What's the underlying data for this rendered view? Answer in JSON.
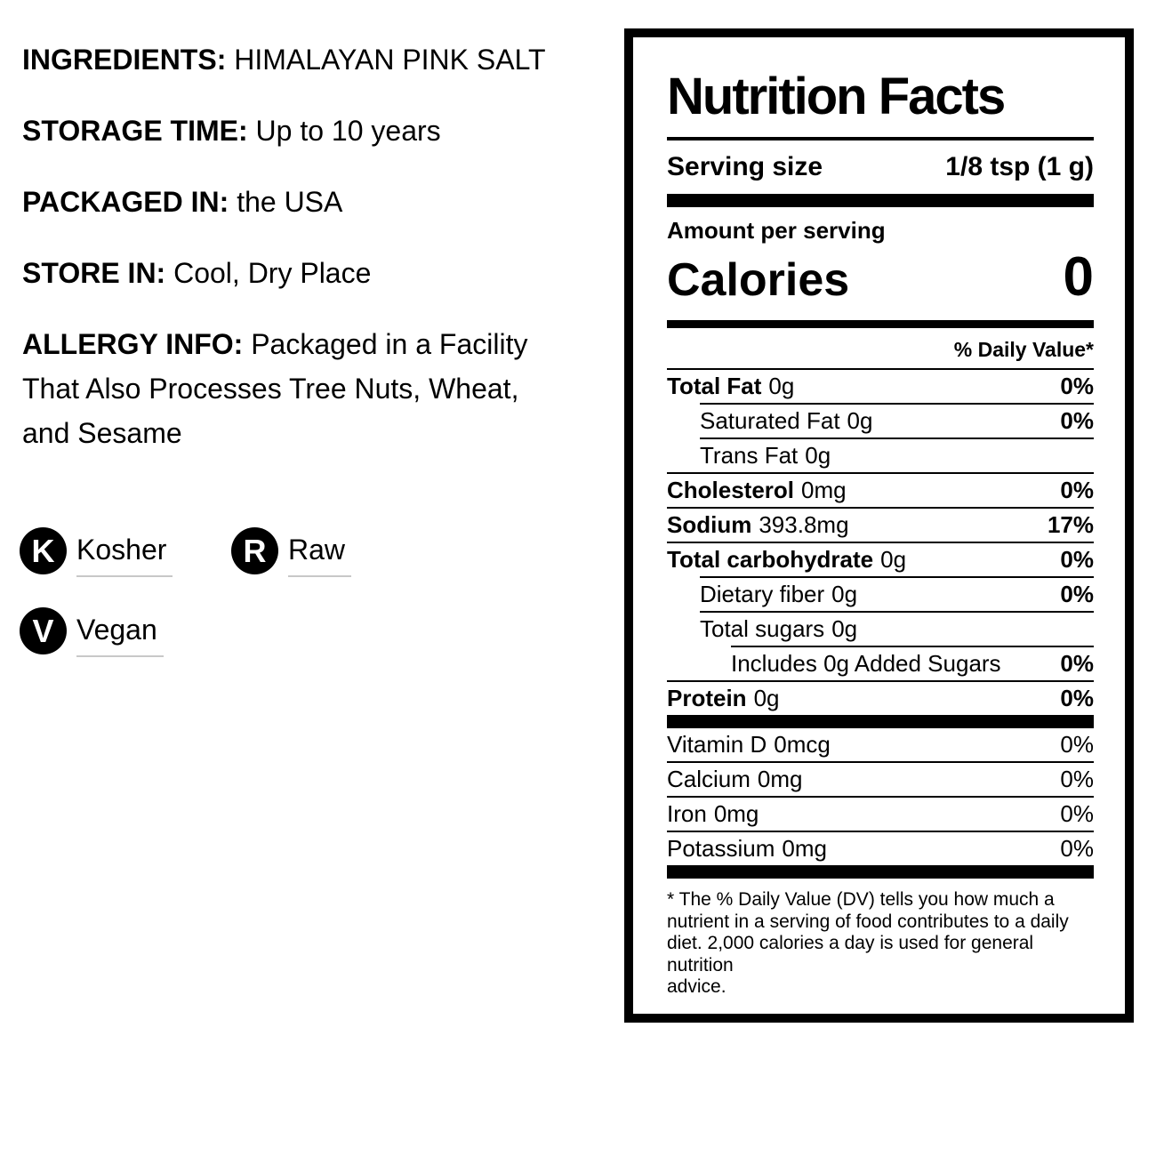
{
  "colors": {
    "text": "#000000",
    "badge_bg": "#000000",
    "badge_letter": "#ffffff",
    "underline": "#c8c8c8"
  },
  "left": {
    "items": [
      {
        "label": "INGREDIENTS:",
        "value": "HIMALAYAN PINK SALT"
      },
      {
        "label": "STORAGE TIME:",
        "value": "Up to 10 years"
      },
      {
        "label": "PACKAGED IN:",
        "value": "the USA"
      },
      {
        "label": "STORE IN:",
        "value": "Cool, Dry Place"
      },
      {
        "label": "ALLERGY INFO:",
        "lines": [
          "Packaged in a Facility",
          "That Also Processes Tree Nuts, Wheat,",
          "and Sesame"
        ]
      }
    ]
  },
  "badges": [
    {
      "initial": "K",
      "label": "Kosher"
    },
    {
      "initial": "R",
      "label": "Raw"
    },
    {
      "initial": "V",
      "label": "Vegan"
    }
  ],
  "nf": {
    "title": "Nutrition Facts",
    "serving_label": "Serving size",
    "serving_value": "1/8 tsp (1 g)",
    "amount_per_serving": "Amount per serving",
    "calories_label": "Calories",
    "calories_value": "0",
    "dv_header": "% Daily Value*",
    "rows": [
      {
        "label": "Total Fat",
        "value": "0g",
        "dv": "0%"
      },
      {
        "label": "Saturated Fat",
        "value": "0g",
        "dv": "0%"
      },
      {
        "label": "Trans Fat",
        "value": "0g",
        "dv": ""
      },
      {
        "label": "Cholesterol",
        "value": "0mg",
        "dv": "0%"
      },
      {
        "label": "Sodium",
        "value": "393.8mg",
        "dv": "17%"
      },
      {
        "label": "Total carbohydrate",
        "value": "0g",
        "dv": "0%"
      },
      {
        "label": "Dietary fiber",
        "value": "0g",
        "dv": "0%"
      },
      {
        "label": "Total sugars",
        "value": "0g",
        "dv": ""
      },
      {
        "label": "Includes 0g Added Sugars",
        "value": "",
        "dv": "0%"
      },
      {
        "label": "Protein",
        "value": "0g",
        "dv": "0%"
      }
    ],
    "vitamins": [
      {
        "label": "Vitamin D",
        "value": "0mcg",
        "dv": "0%"
      },
      {
        "label": "Calcium",
        "value": "0mg",
        "dv": "0%"
      },
      {
        "label": "Iron",
        "value": "0mg",
        "dv": "0%"
      },
      {
        "label": "Potassium",
        "value": "0mg",
        "dv": "0%"
      }
    ],
    "footnote_lines": [
      "* The % Daily Value (DV) tells you how much a",
      "nutrient in a serving of food contributes to a daily",
      "diet. 2,000 calories a day is used for general nutrition",
      "advice."
    ]
  }
}
